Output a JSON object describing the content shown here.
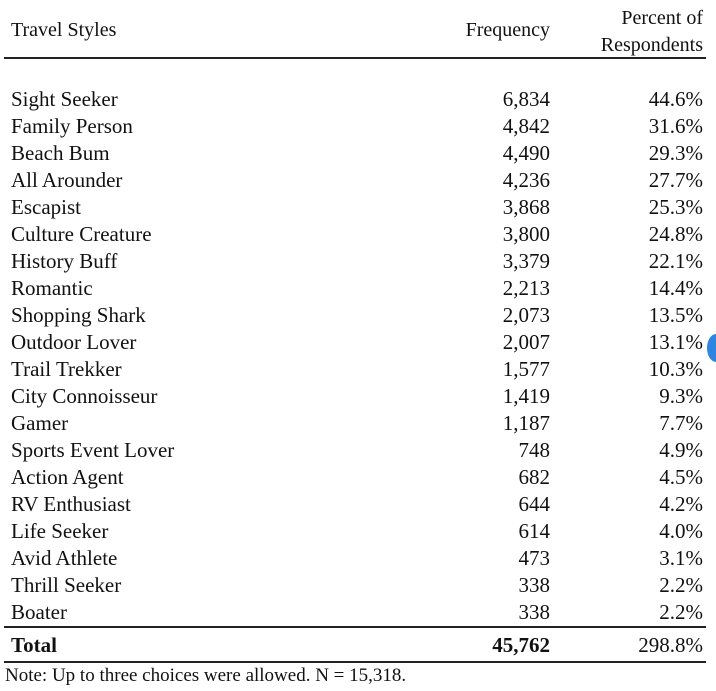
{
  "table": {
    "headers": {
      "style": "Travel Styles",
      "frequency": "Frequency",
      "percent_line1": "Percent of",
      "percent_line2": "Respondents"
    },
    "rows": [
      {
        "style": "Sight Seeker",
        "frequency": "6,834",
        "percent": "44.6%"
      },
      {
        "style": "Family Person",
        "frequency": "4,842",
        "percent": "31.6%"
      },
      {
        "style": "Beach Bum",
        "frequency": "4,490",
        "percent": "29.3%"
      },
      {
        "style": "All Arounder",
        "frequency": "4,236",
        "percent": "27.7%"
      },
      {
        "style": "Escapist",
        "frequency": "3,868",
        "percent": "25.3%"
      },
      {
        "style": "Culture Creature",
        "frequency": "3,800",
        "percent": "24.8%"
      },
      {
        "style": "History Buff",
        "frequency": "3,379",
        "percent": "22.1%"
      },
      {
        "style": "Romantic",
        "frequency": "2,213",
        "percent": "14.4%"
      },
      {
        "style": "Shopping Shark",
        "frequency": "2,073",
        "percent": "13.5%"
      },
      {
        "style": "Outdoor Lover",
        "frequency": "2,007",
        "percent": "13.1%"
      },
      {
        "style": "Trail Trekker",
        "frequency": "1,577",
        "percent": "10.3%"
      },
      {
        "style": "City Connoisseur",
        "frequency": "1,419",
        "percent": "9.3%"
      },
      {
        "style": "Gamer",
        "frequency": "1,187",
        "percent": "7.7%"
      },
      {
        "style": "Sports Event Lover",
        "frequency": "748",
        "percent": "4.9%"
      },
      {
        "style": "Action Agent",
        "frequency": "682",
        "percent": "4.5%"
      },
      {
        "style": "RV Enthusiast",
        "frequency": "644",
        "percent": "4.2%"
      },
      {
        "style": "Life Seeker",
        "frequency": "614",
        "percent": "4.0%"
      },
      {
        "style": "Avid Athlete",
        "frequency": "473",
        "percent": "3.1%"
      },
      {
        "style": "Thrill Seeker",
        "frequency": "338",
        "percent": "2.2%"
      },
      {
        "style": "Boater",
        "frequency": "338",
        "percent": "2.2%"
      }
    ],
    "total": {
      "label": "Total",
      "frequency": "45,762",
      "percent": "298.8%"
    },
    "note": "Note:  Up to three choices were allowed. N = 15,318."
  },
  "colors": {
    "text": "#111111",
    "scroll_indicator": "#2f86e0"
  }
}
